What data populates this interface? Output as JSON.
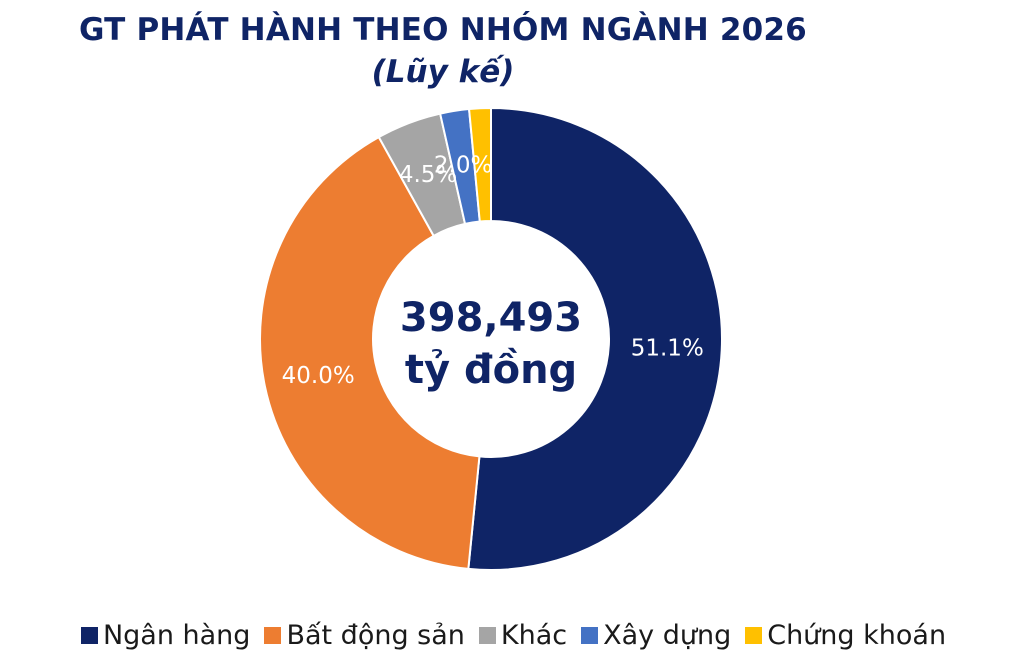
{
  "chart_data": {
    "type": "pie",
    "variant": "donut",
    "title": "GT PHÁT HÀNH THEO NHÓM NGÀNH 2026",
    "subtitle": "(Lũy kế)",
    "center_value": "398,493",
    "center_unit": "tỷ đồng",
    "legend_position": "bottom",
    "slices": [
      {
        "name": "Ngân hàng",
        "value": 51.1,
        "label": "51.1%",
        "color": "#0f2466"
      },
      {
        "name": "Bất động sản",
        "value": 40.0,
        "label": "40.0%",
        "color": "#ed7d31"
      },
      {
        "name": "Khác",
        "value": 4.5,
        "label": "4.5%",
        "color": "#a5a5a5"
      },
      {
        "name": "Xây dựng",
        "value": 2.0,
        "label": "2.0%",
        "color": "#4472c4"
      },
      {
        "name": "Chứng khoán",
        "value": 1.5,
        "label": "",
        "color": "#ffc000"
      }
    ]
  }
}
